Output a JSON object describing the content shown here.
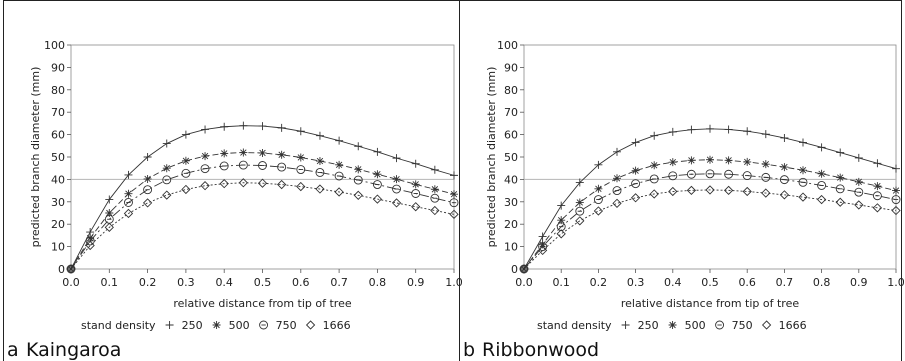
{
  "chart_data": [
    {
      "type": "line",
      "panel_letter": "a",
      "title": "Kaingaroa",
      "xlabel": "relative distance from tip of tree",
      "ylabel": "predicted branch diameter (mm)",
      "xlim": [
        0,
        1.0
      ],
      "ylim": [
        0,
        100
      ],
      "xticks": [
        "0.0",
        "0.1",
        "0.2",
        "0.3",
        "0.4",
        "0.5",
        "0.6",
        "0.7",
        "0.8",
        "0.9",
        "1.0"
      ],
      "yticks": [
        "0",
        "10",
        "20",
        "30",
        "40",
        "50",
        "60",
        "70",
        "80",
        "90",
        "100"
      ],
      "reference_line_y": 40,
      "legend_title": "stand density",
      "legend_position": "bottom",
      "x": [
        0,
        0.05,
        0.1,
        0.15,
        0.2,
        0.25,
        0.3,
        0.35,
        0.4,
        0.45,
        0.5,
        0.55,
        0.6,
        0.65,
        0.7,
        0.75,
        0.8,
        0.85,
        0.9,
        0.95,
        1.0
      ],
      "series": [
        {
          "name": "250",
          "marker": "plus",
          "dash": "",
          "values": [
            0,
            16.5,
            31,
            42,
            50,
            56,
            60,
            62.3,
            63.5,
            64,
            63.8,
            63,
            61.5,
            59.5,
            57.3,
            54.8,
            52.3,
            49.5,
            47,
            44.3,
            41.8
          ]
        },
        {
          "name": "500",
          "marker": "star",
          "dash": "6,3",
          "values": [
            0,
            13.8,
            25,
            33.6,
            40.2,
            45,
            48.3,
            50.4,
            51.6,
            52,
            51.8,
            51,
            49.8,
            48.2,
            46.5,
            44.5,
            42.3,
            40.1,
            37.8,
            35.6,
            33.4
          ]
        },
        {
          "name": "750",
          "marker": "circle",
          "dash": "9,3,2,3",
          "values": [
            0,
            12.5,
            22.2,
            29.7,
            35.4,
            39.8,
            42.7,
            44.8,
            46,
            46.4,
            46.2,
            45.5,
            44.4,
            43.1,
            41.5,
            39.7,
            37.7,
            35.7,
            33.7,
            31.6,
            29.6
          ]
        },
        {
          "name": "1666",
          "marker": "diamond",
          "dash": "2,2",
          "values": [
            0,
            10.5,
            18.6,
            24.8,
            29.5,
            33,
            35.5,
            37.2,
            38.1,
            38.5,
            38.3,
            37.7,
            36.8,
            35.7,
            34.4,
            32.9,
            31.2,
            29.5,
            27.8,
            26.1,
            24.4
          ]
        }
      ]
    },
    {
      "type": "line",
      "panel_letter": "b",
      "title": "Ribbonwood",
      "xlabel": "relative distance from tip of tree",
      "ylabel": "predicted branch diameter (mm)",
      "xlim": [
        0,
        1.0
      ],
      "ylim": [
        0,
        100
      ],
      "xticks": [
        "0.0",
        "0.1",
        "0.2",
        "0.3",
        "0.4",
        "0.5",
        "0.6",
        "0.7",
        "0.8",
        "0.9",
        "1.0"
      ],
      "yticks": [
        "0",
        "10",
        "20",
        "30",
        "40",
        "50",
        "60",
        "70",
        "80",
        "90",
        "100"
      ],
      "reference_line_y": 40,
      "legend_title": "stand density",
      "legend_position": "bottom",
      "x": [
        0,
        0.05,
        0.1,
        0.15,
        0.2,
        0.25,
        0.3,
        0.35,
        0.4,
        0.45,
        0.5,
        0.55,
        0.6,
        0.65,
        0.7,
        0.75,
        0.8,
        0.85,
        0.9,
        0.95,
        1.0
      ],
      "series": [
        {
          "name": "250",
          "marker": "plus",
          "dash": "",
          "values": [
            0,
            14.5,
            28.3,
            38.6,
            46.5,
            52.3,
            56.5,
            59.5,
            61.2,
            62.2,
            62.6,
            62.3,
            61.5,
            60.2,
            58.5,
            56.5,
            54.3,
            52,
            49.6,
            47.2,
            44.8
          ]
        },
        {
          "name": "500",
          "marker": "star",
          "dash": "6,3",
          "values": [
            0,
            11,
            21.8,
            29.7,
            35.8,
            40.5,
            43.9,
            46.3,
            47.7,
            48.5,
            48.8,
            48.5,
            47.8,
            46.8,
            45.5,
            44.1,
            42.5,
            40.8,
            38.9,
            37,
            35
          ]
        },
        {
          "name": "750",
          "marker": "circle",
          "dash": "9,3,2,3",
          "values": [
            0,
            10,
            18.9,
            25.8,
            31,
            35,
            38.1,
            40.2,
            41.6,
            42.3,
            42.5,
            42.3,
            41.7,
            40.9,
            39.9,
            38.7,
            37.3,
            35.8,
            34.3,
            32.7,
            31
          ]
        },
        {
          "name": "1666",
          "marker": "diamond",
          "dash": "2,2",
          "values": [
            0,
            8.3,
            15.7,
            21.5,
            25.9,
            29.3,
            31.8,
            33.5,
            34.6,
            35.1,
            35.3,
            35.1,
            34.6,
            33.9,
            33.1,
            32.1,
            31,
            29.8,
            28.6,
            27.3,
            26.1
          ]
        }
      ]
    }
  ]
}
